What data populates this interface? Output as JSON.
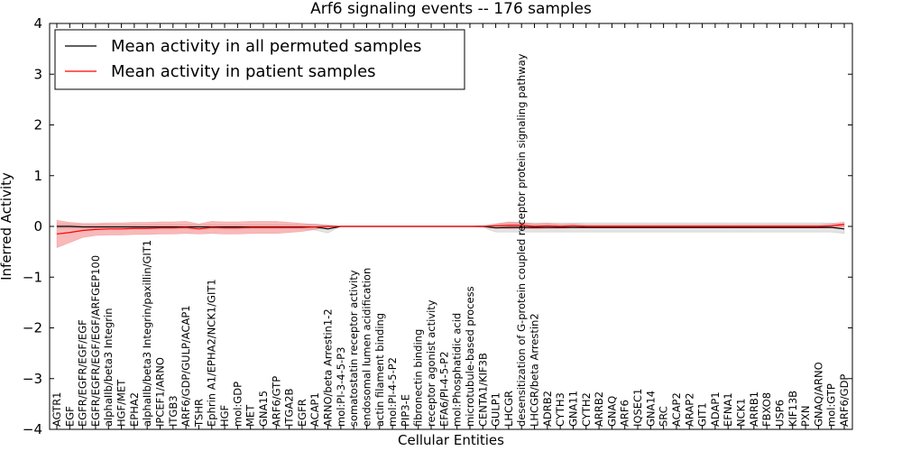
{
  "chart_data": {
    "type": "line",
    "title": "Arf6 signaling events -- 176 samples",
    "xlabel": "Cellular Entities",
    "ylabel": "Inferred Activity",
    "ylim": [
      -4,
      4
    ],
    "yticks": [
      4,
      3,
      2,
      1,
      0,
      -1,
      -2,
      -3,
      -4
    ],
    "ytick_labels": [
      "4",
      "3",
      "2",
      "1",
      "0",
      "−1",
      "−2",
      "−3",
      "−4"
    ],
    "legend": {
      "placement": "top-left",
      "entries": [
        {
          "label": "Mean activity in all permuted samples",
          "color": "#000000"
        },
        {
          "label": "Mean activity in patient samples",
          "color": "#ff0000"
        }
      ]
    },
    "colors": {
      "permuted": "#000000",
      "patient": "#ff0000",
      "patient_band": "#f08080",
      "permuted_band": "#b0b0b0"
    },
    "categories": [
      "AGTR1",
      "EGF",
      "EGFR/EGFR/EGF/EGF",
      "EGFR/EGFR/EGF/EGF/ARFGEP100",
      "alphaIIb/beta3 Integrin",
      "HGF/MET",
      "EPHA2",
      "alphaIIb/beta3 Integrin/paxillin/GIT1",
      "IPCEF1/ARNO",
      "ITGB3",
      "ARF6/GDP/GULP/ACAP1",
      "TSHR",
      "Ephrin A1/EPHA2/NCK1/GIT1",
      "HGF",
      "mol:GDP",
      "MET",
      "GNA15",
      "ARF6/GTP",
      "ITGA2B",
      "EGFR",
      "ACAP1",
      "ARNO/beta Arrestin1-2",
      "mol:PI-3-4-5-P3",
      "somatostatin receptor activity",
      "endosomal lumen acidification",
      "actin filament binding",
      "mol:PI-4-5-P2",
      "PIP3-E",
      "fibronectin binding",
      "receptor agonist activity",
      "EFA6/PI-4-5-P2",
      "mol:Phosphatidic acid",
      "microtubule-based process",
      "CENTA1/KIF3B",
      "GULP1",
      "LHCGR",
      "desensitization of G-protein coupled receptor protein signaling pathway",
      "LHCGR/beta Arrestin2",
      "ADRB2",
      "CYTH3",
      "GNA11",
      "CYTH2",
      "ARRB2",
      "GNAQ",
      "ARF6",
      "IQSEC1",
      "GNA14",
      "SRC",
      "ACAP2",
      "ARAP2",
      "GIT1",
      "ADAP1",
      "EFNA1",
      "NCK1",
      "ARRB1",
      "FBXO8",
      "USP6",
      "KIF13B",
      "PXN",
      "GNAQ/ARNO",
      "mol:GTP",
      "ARF6/GDP"
    ],
    "series": [
      {
        "name": "Mean activity in all permuted samples",
        "values": [
          0.0,
          0.0,
          -0.01,
          -0.01,
          -0.01,
          -0.01,
          -0.01,
          -0.01,
          -0.01,
          -0.01,
          -0.01,
          -0.01,
          -0.01,
          -0.01,
          -0.01,
          -0.01,
          -0.01,
          -0.01,
          -0.01,
          -0.01,
          -0.01,
          -0.05,
          0.0,
          0.0,
          0.0,
          0.0,
          0.0,
          0.0,
          0.0,
          0.0,
          0.0,
          0.0,
          0.0,
          0.0,
          -0.03,
          -0.02,
          -0.02,
          -0.02,
          -0.02,
          -0.02,
          -0.02,
          -0.02,
          -0.02,
          -0.02,
          -0.02,
          -0.02,
          -0.02,
          -0.02,
          -0.02,
          -0.02,
          -0.02,
          -0.02,
          -0.02,
          -0.02,
          -0.02,
          -0.02,
          -0.02,
          -0.02,
          -0.02,
          -0.02,
          -0.02,
          -0.05
        ],
        "band": [
          0.04,
          0.04,
          0.04,
          0.04,
          0.04,
          0.04,
          0.04,
          0.04,
          0.04,
          0.04,
          0.04,
          0.04,
          0.04,
          0.04,
          0.04,
          0.04,
          0.04,
          0.04,
          0.04,
          0.04,
          0.06,
          0.08,
          0.0,
          0.0,
          0.0,
          0.0,
          0.0,
          0.0,
          0.0,
          0.0,
          0.0,
          0.0,
          0.0,
          0.02,
          0.08,
          0.09,
          0.09,
          0.09,
          0.09,
          0.09,
          0.09,
          0.09,
          0.09,
          0.09,
          0.09,
          0.09,
          0.09,
          0.09,
          0.09,
          0.09,
          0.09,
          0.09,
          0.09,
          0.09,
          0.09,
          0.09,
          0.09,
          0.09,
          0.09,
          0.09,
          0.09,
          0.09
        ]
      },
      {
        "name": "Mean activity in patient samples",
        "values": [
          -0.15,
          -0.12,
          -0.08,
          -0.06,
          -0.05,
          -0.05,
          -0.04,
          -0.04,
          -0.03,
          -0.03,
          -0.02,
          -0.05,
          -0.02,
          -0.03,
          -0.03,
          -0.02,
          -0.02,
          -0.02,
          -0.02,
          -0.02,
          -0.01,
          0.0,
          0.0,
          0.0,
          0.0,
          0.0,
          0.0,
          0.0,
          0.0,
          0.0,
          0.0,
          0.0,
          0.0,
          0.0,
          0.01,
          0.02,
          0.02,
          0.0,
          0.01,
          0.0,
          0.01,
          0.0,
          0.0,
          0.0,
          0.0,
          0.0,
          0.0,
          0.0,
          0.0,
          0.0,
          0.0,
          0.0,
          0.0,
          0.0,
          0.0,
          0.0,
          0.0,
          0.0,
          0.0,
          0.0,
          0.01,
          0.04
        ],
        "band": [
          0.27,
          0.2,
          0.14,
          0.12,
          0.12,
          0.12,
          0.12,
          0.12,
          0.12,
          0.12,
          0.12,
          0.1,
          0.12,
          0.12,
          0.12,
          0.12,
          0.12,
          0.12,
          0.1,
          0.08,
          0.05,
          0.02,
          0.0,
          0.0,
          0.0,
          0.0,
          0.0,
          0.0,
          0.0,
          0.0,
          0.0,
          0.0,
          0.0,
          0.0,
          0.04,
          0.07,
          0.06,
          0.05,
          0.05,
          0.04,
          0.04,
          0.03,
          0.03,
          0.03,
          0.03,
          0.03,
          0.03,
          0.03,
          0.03,
          0.03,
          0.03,
          0.03,
          0.03,
          0.03,
          0.03,
          0.03,
          0.03,
          0.03,
          0.03,
          0.03,
          0.04,
          0.05
        ]
      }
    ]
  }
}
